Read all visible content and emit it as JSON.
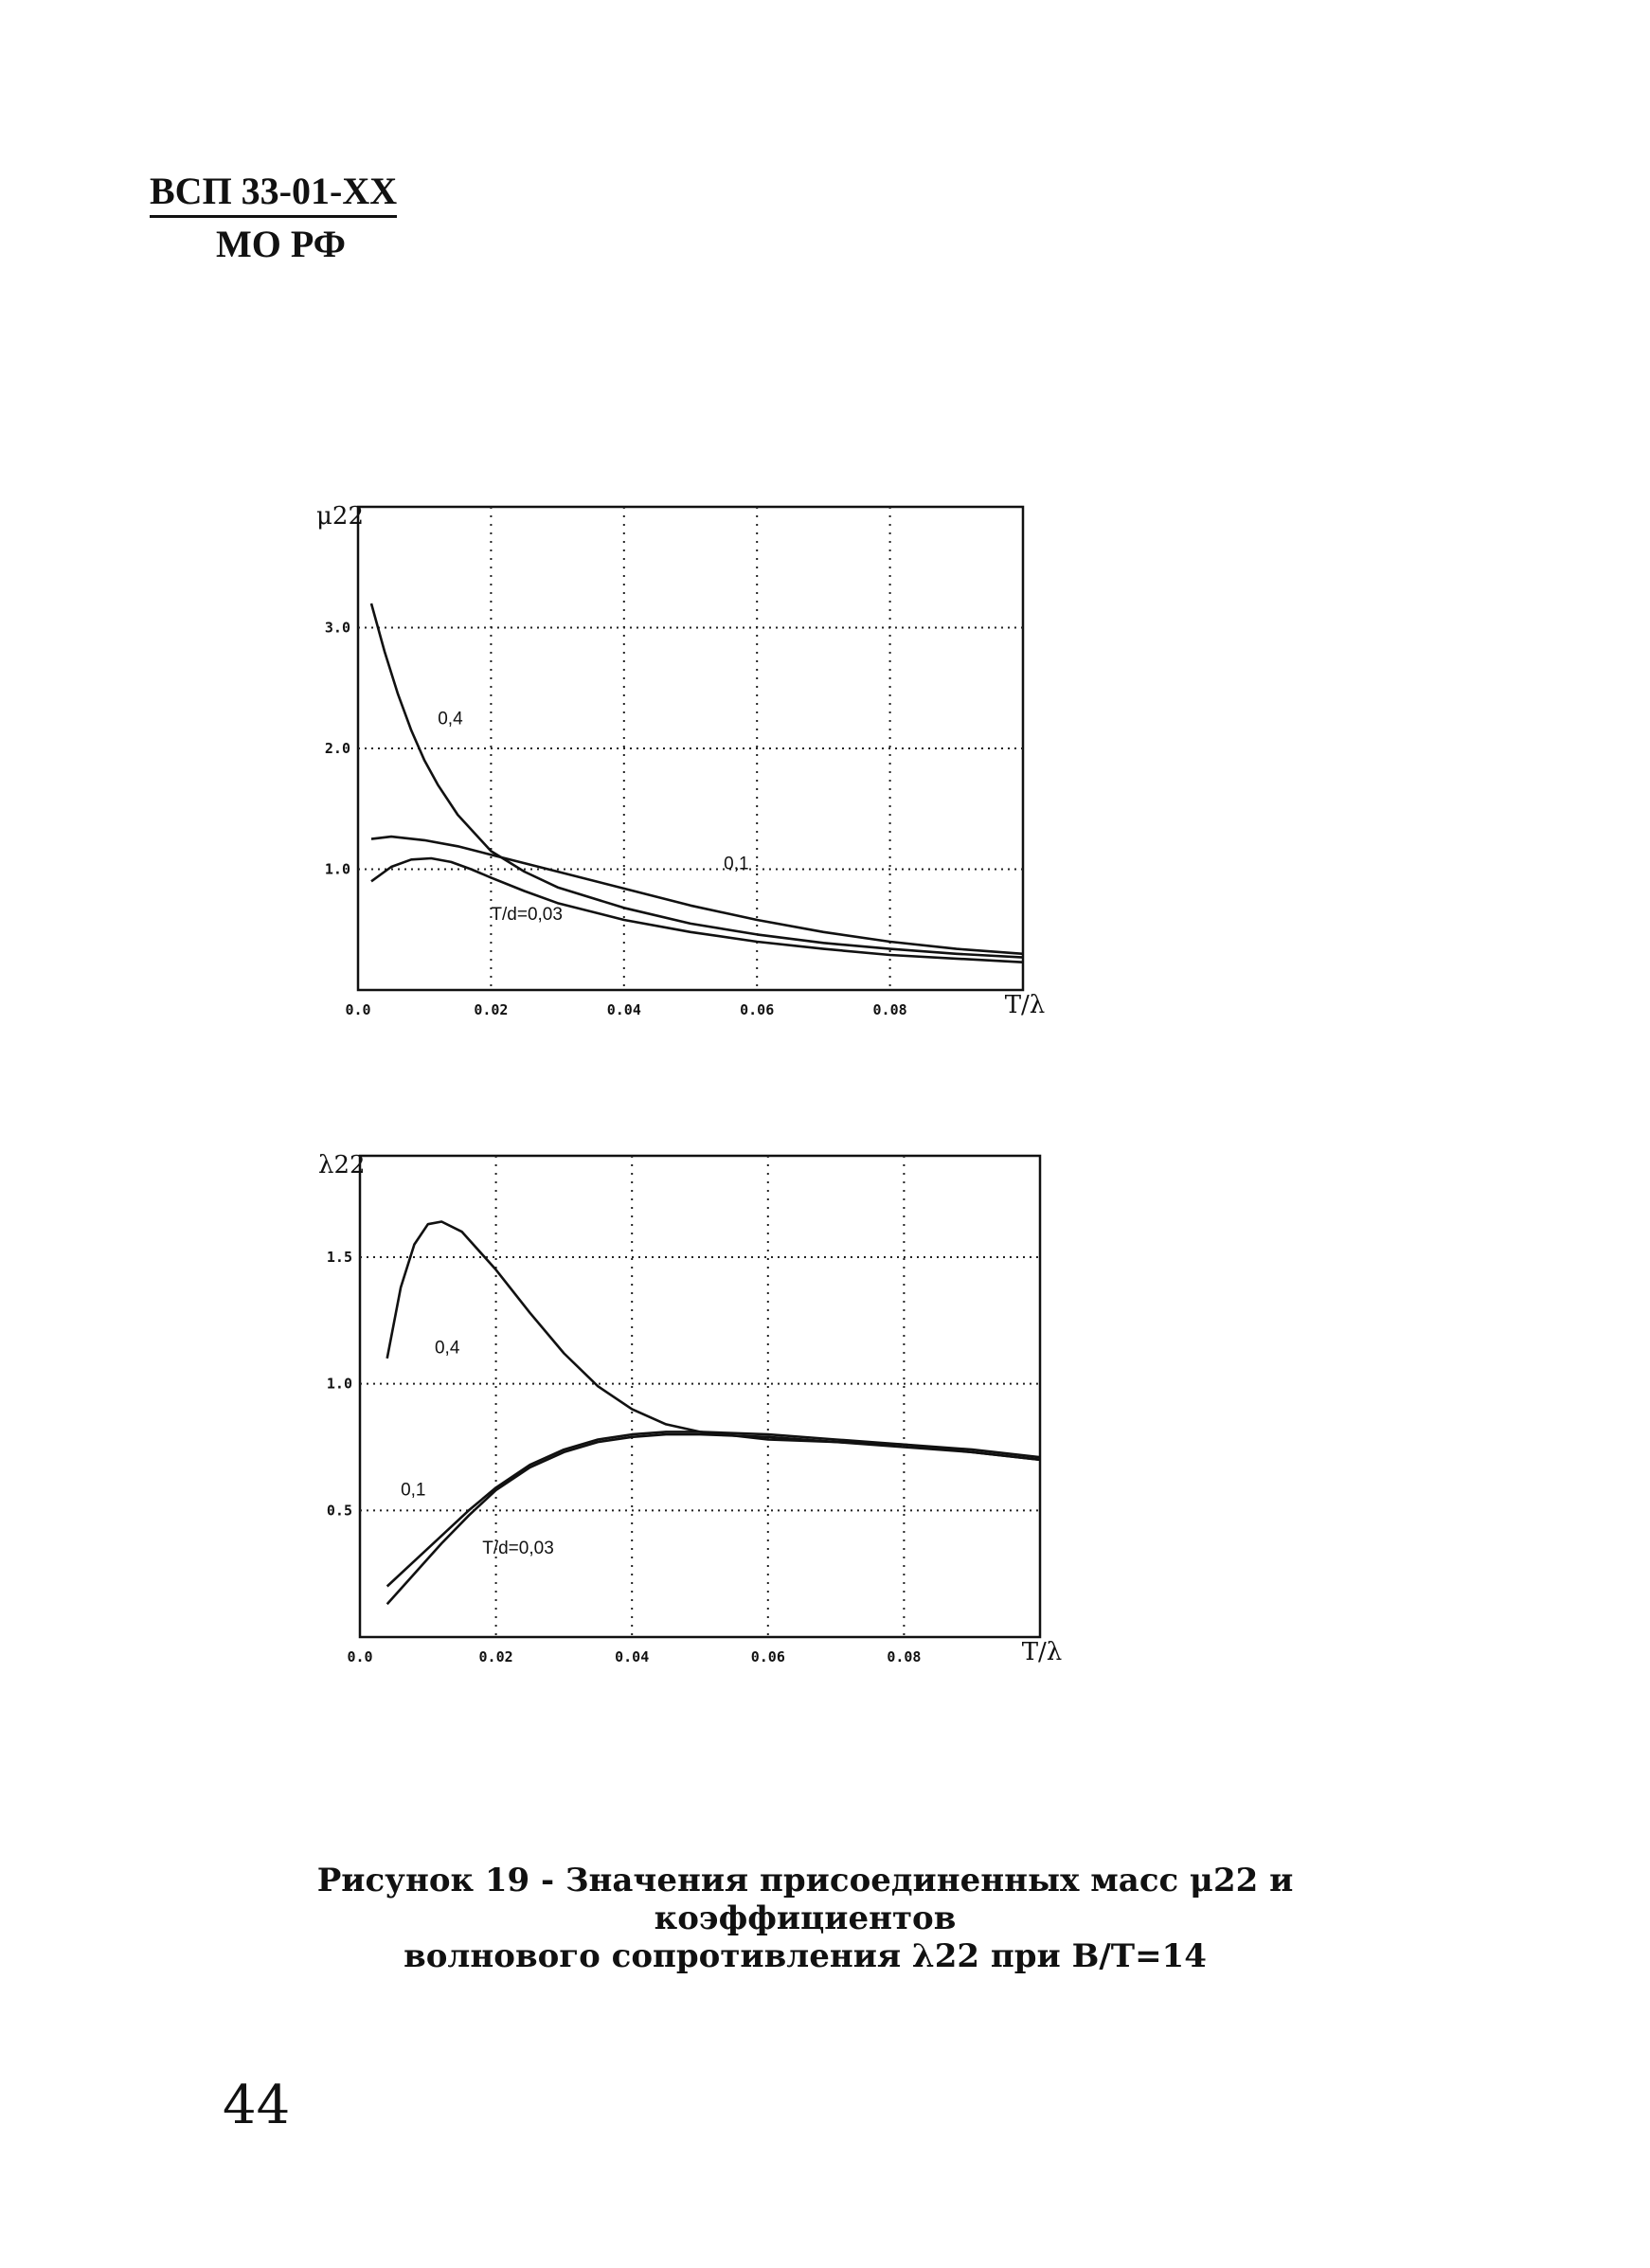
{
  "header": {
    "doc_code": "ВСП 33-01-XX",
    "ministry": "МО РФ"
  },
  "chart_data": [
    {
      "type": "line",
      "ylabel": "μ22",
      "xlabel": "T/λ",
      "xlim": [
        0.0,
        0.1
      ],
      "ylim": [
        0.0,
        4.0
      ],
      "x_ticks": [
        "0.0",
        "0.02",
        "0.04",
        "0.06",
        "0.08"
      ],
      "y_ticks": [
        "1.0",
        "2.0",
        "3.0"
      ],
      "grid": true,
      "series": [
        {
          "name": "0,4",
          "x": [
            0.002,
            0.004,
            0.006,
            0.008,
            0.01,
            0.012,
            0.015,
            0.02,
            0.025,
            0.03,
            0.04,
            0.05,
            0.06,
            0.07,
            0.08,
            0.09,
            0.1
          ],
          "y": [
            3.2,
            2.8,
            2.45,
            2.15,
            1.9,
            1.7,
            1.45,
            1.15,
            0.98,
            0.85,
            0.68,
            0.55,
            0.46,
            0.39,
            0.34,
            0.3,
            0.27
          ]
        },
        {
          "name": "0,1",
          "x": [
            0.002,
            0.005,
            0.01,
            0.015,
            0.02,
            0.03,
            0.04,
            0.05,
            0.06,
            0.07,
            0.08,
            0.09,
            0.1
          ],
          "y": [
            1.25,
            1.27,
            1.24,
            1.19,
            1.12,
            0.98,
            0.84,
            0.7,
            0.58,
            0.48,
            0.4,
            0.34,
            0.3
          ]
        },
        {
          "name": "T/d=0,03",
          "x": [
            0.002,
            0.005,
            0.008,
            0.011,
            0.014,
            0.017,
            0.02,
            0.025,
            0.03,
            0.04,
            0.05,
            0.06,
            0.07,
            0.08,
            0.09,
            0.1
          ],
          "y": [
            0.9,
            1.02,
            1.08,
            1.09,
            1.06,
            1.0,
            0.93,
            0.82,
            0.72,
            0.58,
            0.48,
            0.4,
            0.34,
            0.29,
            0.26,
            0.23
          ]
        }
      ],
      "curve_labels": [
        "0,4",
        "0,1",
        "T/d=0,03"
      ]
    },
    {
      "type": "line",
      "ylabel": "λ22",
      "xlabel": "T/λ",
      "xlim": [
        0.0,
        0.1
      ],
      "ylim": [
        0.0,
        1.9
      ],
      "x_ticks": [
        "0.0",
        "0.02",
        "0.04",
        "0.06",
        "0.08"
      ],
      "y_ticks": [
        "0.5",
        "1.0",
        "1.5"
      ],
      "grid": true,
      "series": [
        {
          "name": "0,4",
          "x": [
            0.004,
            0.006,
            0.008,
            0.01,
            0.012,
            0.015,
            0.02,
            0.025,
            0.03,
            0.035,
            0.04,
            0.045,
            0.05,
            0.06,
            0.07,
            0.08,
            0.09,
            0.1
          ],
          "y": [
            1.1,
            1.38,
            1.55,
            1.63,
            1.64,
            1.6,
            1.45,
            1.28,
            1.12,
            0.99,
            0.9,
            0.84,
            0.81,
            0.78,
            0.77,
            0.76,
            0.74,
            0.71
          ]
        },
        {
          "name": "0,1",
          "x": [
            0.004,
            0.008,
            0.012,
            0.016,
            0.02,
            0.025,
            0.03,
            0.035,
            0.04,
            0.045,
            0.05,
            0.06,
            0.07,
            0.08,
            0.09,
            0.1
          ],
          "y": [
            0.2,
            0.3,
            0.4,
            0.5,
            0.59,
            0.68,
            0.74,
            0.78,
            0.8,
            0.81,
            0.81,
            0.8,
            0.78,
            0.76,
            0.73,
            0.7
          ]
        },
        {
          "name": "T/d=0,03",
          "x": [
            0.004,
            0.008,
            0.012,
            0.016,
            0.02,
            0.025,
            0.03,
            0.035,
            0.04,
            0.045,
            0.05,
            0.06,
            0.07,
            0.08,
            0.09,
            0.1
          ],
          "y": [
            0.13,
            0.25,
            0.37,
            0.48,
            0.58,
            0.67,
            0.73,
            0.77,
            0.79,
            0.8,
            0.8,
            0.79,
            0.77,
            0.75,
            0.73,
            0.7
          ]
        }
      ],
      "curve_labels": [
        "0,4",
        "0,1",
        "T/d=0,03"
      ]
    }
  ],
  "caption": {
    "line1": "Рисунок 19 - Значения присоединенных масс μ22 и коэффициентов",
    "line2": "волнового сопротивления λ22 при B/T=14"
  },
  "page_number": "44"
}
